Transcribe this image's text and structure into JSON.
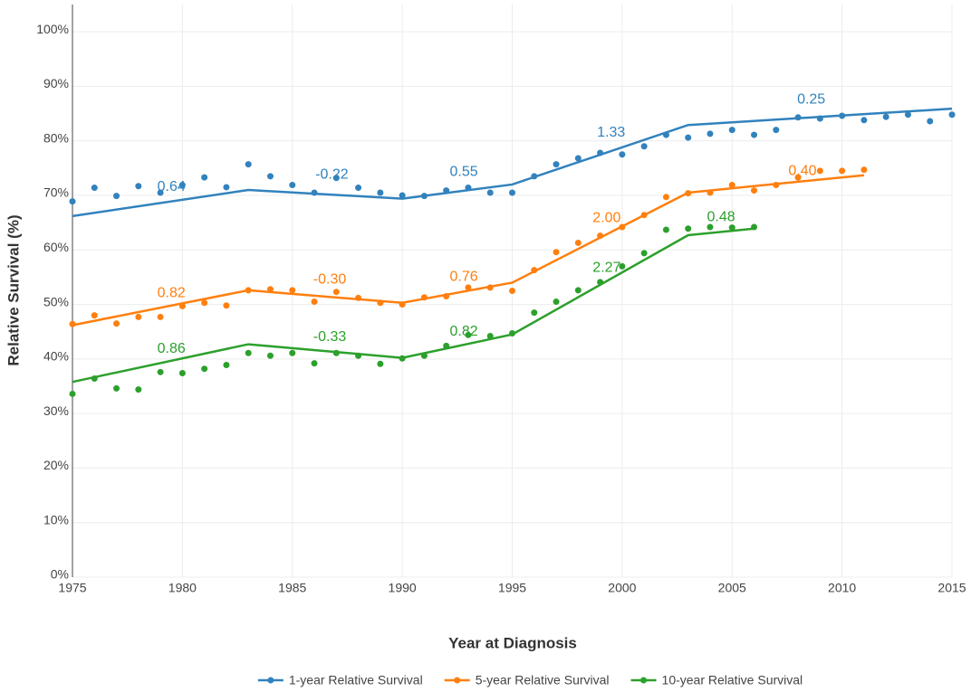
{
  "chart_data": {
    "type": "scatter",
    "x_label": "Year at Diagnosis",
    "y_label": "Relative Survival (%)",
    "xlim": [
      1975,
      2015
    ],
    "xticks": [
      1975,
      1980,
      1985,
      1990,
      1995,
      2000,
      2005,
      2010,
      2015
    ],
    "ylim": [
      0,
      105
    ],
    "yticks": [
      {
        "value": 0,
        "label": "0%"
      },
      {
        "value": 10,
        "label": "10%"
      },
      {
        "value": 20,
        "label": "20%"
      },
      {
        "value": 30,
        "label": "30%"
      },
      {
        "value": 40,
        "label": "40%"
      },
      {
        "value": 50,
        "label": "50%"
      },
      {
        "value": 60,
        "label": "60%"
      },
      {
        "value": 70,
        "label": "70%"
      },
      {
        "value": 80,
        "label": "80%"
      },
      {
        "value": 90,
        "label": "90%"
      },
      {
        "value": 100,
        "label": "100%"
      }
    ],
    "grid": true,
    "legend": "bottom",
    "series": [
      {
        "name": "1-year Relative Survival",
        "color": "#3182bd",
        "x": [
          1975,
          1976,
          1977,
          1978,
          1979,
          1980,
          1981,
          1982,
          1983,
          1984,
          1985,
          1986,
          1987,
          1988,
          1989,
          1990,
          1991,
          1992,
          1993,
          1994,
          1995,
          1996,
          1997,
          1998,
          1999,
          2000,
          2001,
          2002,
          2003,
          2004,
          2005,
          2006,
          2007,
          2008,
          2009,
          2010,
          2011,
          2012,
          2013,
          2014,
          2015
        ],
        "values": [
          68.9,
          71.4,
          69.9,
          71.7,
          70.5,
          71.9,
          73.3,
          71.5,
          75.7,
          73.5,
          71.9,
          70.5,
          73.2,
          71.4,
          70.5,
          70.0,
          69.9,
          70.9,
          71.4,
          70.5,
          70.5,
          73.5,
          75.7,
          76.8,
          77.8,
          77.5,
          79.0,
          81.1,
          80.6,
          81.3,
          82.0,
          81.1,
          82.0,
          84.3,
          84.1,
          84.6,
          83.8,
          84.4,
          84.8,
          83.6,
          84.8
        ],
        "trend_x": [
          1975,
          1983,
          1990,
          1995,
          2003,
          2015
        ],
        "trend_values": [
          66.2,
          71.0,
          69.4,
          72.0,
          82.9,
          85.9
        ],
        "annotations": [
          {
            "text": "0.64",
            "x": 1979.5,
            "y": 71.5
          },
          {
            "text": "-0.22",
            "x": 1986.8,
            "y": 73.8
          },
          {
            "text": "0.55",
            "x": 1992.8,
            "y": 74.3
          },
          {
            "text": "1.33",
            "x": 1999.5,
            "y": 81.5
          },
          {
            "text": "0.25",
            "x": 2008.6,
            "y": 87.5
          }
        ]
      },
      {
        "name": "5-year Relative Survival",
        "color": "#ff7f0e",
        "x": [
          1975,
          1976,
          1977,
          1978,
          1979,
          1980,
          1981,
          1982,
          1983,
          1984,
          1985,
          1986,
          1987,
          1988,
          1989,
          1990,
          1991,
          1992,
          1993,
          1994,
          1995,
          1996,
          1997,
          1998,
          1999,
          2000,
          2001,
          2002,
          2003,
          2004,
          2005,
          2006,
          2007,
          2008,
          2009,
          2010,
          2011
        ],
        "values": [
          46.4,
          48.0,
          46.5,
          47.7,
          47.7,
          49.7,
          50.3,
          49.8,
          52.6,
          52.8,
          52.6,
          50.5,
          52.3,
          51.2,
          50.3,
          50.0,
          51.3,
          51.5,
          53.1,
          53.1,
          52.5,
          56.3,
          59.6,
          61.3,
          62.6,
          64.2,
          66.4,
          69.7,
          70.4,
          70.5,
          71.9,
          70.9,
          71.9,
          73.3,
          74.5,
          74.5,
          74.7
        ],
        "trend_x": [
          1975,
          1983,
          1990,
          1995,
          2003,
          2011
        ],
        "trend_values": [
          46.2,
          52.6,
          50.3,
          54.0,
          70.5,
          73.7
        ],
        "annotations": [
          {
            "text": "0.82",
            "x": 1979.5,
            "y": 52.0
          },
          {
            "text": "-0.30",
            "x": 1986.7,
            "y": 54.5
          },
          {
            "text": "0.76",
            "x": 1992.8,
            "y": 55.0
          },
          {
            "text": "2.00",
            "x": 1999.3,
            "y": 65.8
          },
          {
            "text": "0.40",
            "x": 2008.2,
            "y": 74.4
          }
        ]
      },
      {
        "name": "10-year Relative Survival",
        "color": "#2ca02c",
        "x": [
          1975,
          1976,
          1977,
          1978,
          1979,
          1980,
          1981,
          1982,
          1983,
          1984,
          1985,
          1986,
          1987,
          1988,
          1989,
          1990,
          1991,
          1992,
          1993,
          1994,
          1995,
          1996,
          1997,
          1998,
          1999,
          2000,
          2001,
          2002,
          2003,
          2004,
          2005,
          2006
        ],
        "values": [
          33.6,
          36.4,
          34.6,
          34.4,
          37.6,
          37.4,
          38.2,
          38.9,
          41.1,
          40.6,
          41.1,
          39.2,
          41.1,
          40.6,
          39.1,
          40.1,
          40.6,
          42.4,
          44.4,
          44.2,
          44.7,
          48.5,
          50.5,
          52.6,
          54.1,
          57.0,
          59.4,
          63.7,
          63.9,
          64.2,
          64.1,
          64.2
        ],
        "trend_x": [
          1975,
          1983,
          1990,
          1995,
          2003,
          2006
        ],
        "trend_values": [
          35.8,
          42.7,
          40.2,
          44.5,
          62.7,
          63.9
        ],
        "annotations": [
          {
            "text": "0.86",
            "x": 1979.5,
            "y": 41.8
          },
          {
            "text": "-0.33",
            "x": 1986.7,
            "y": 44.0
          },
          {
            "text": "0.82",
            "x": 1992.8,
            "y": 45.0
          },
          {
            "text": "2.27",
            "x": 1999.3,
            "y": 56.7
          },
          {
            "text": "0.48",
            "x": 2004.5,
            "y": 66.0
          }
        ]
      }
    ]
  }
}
